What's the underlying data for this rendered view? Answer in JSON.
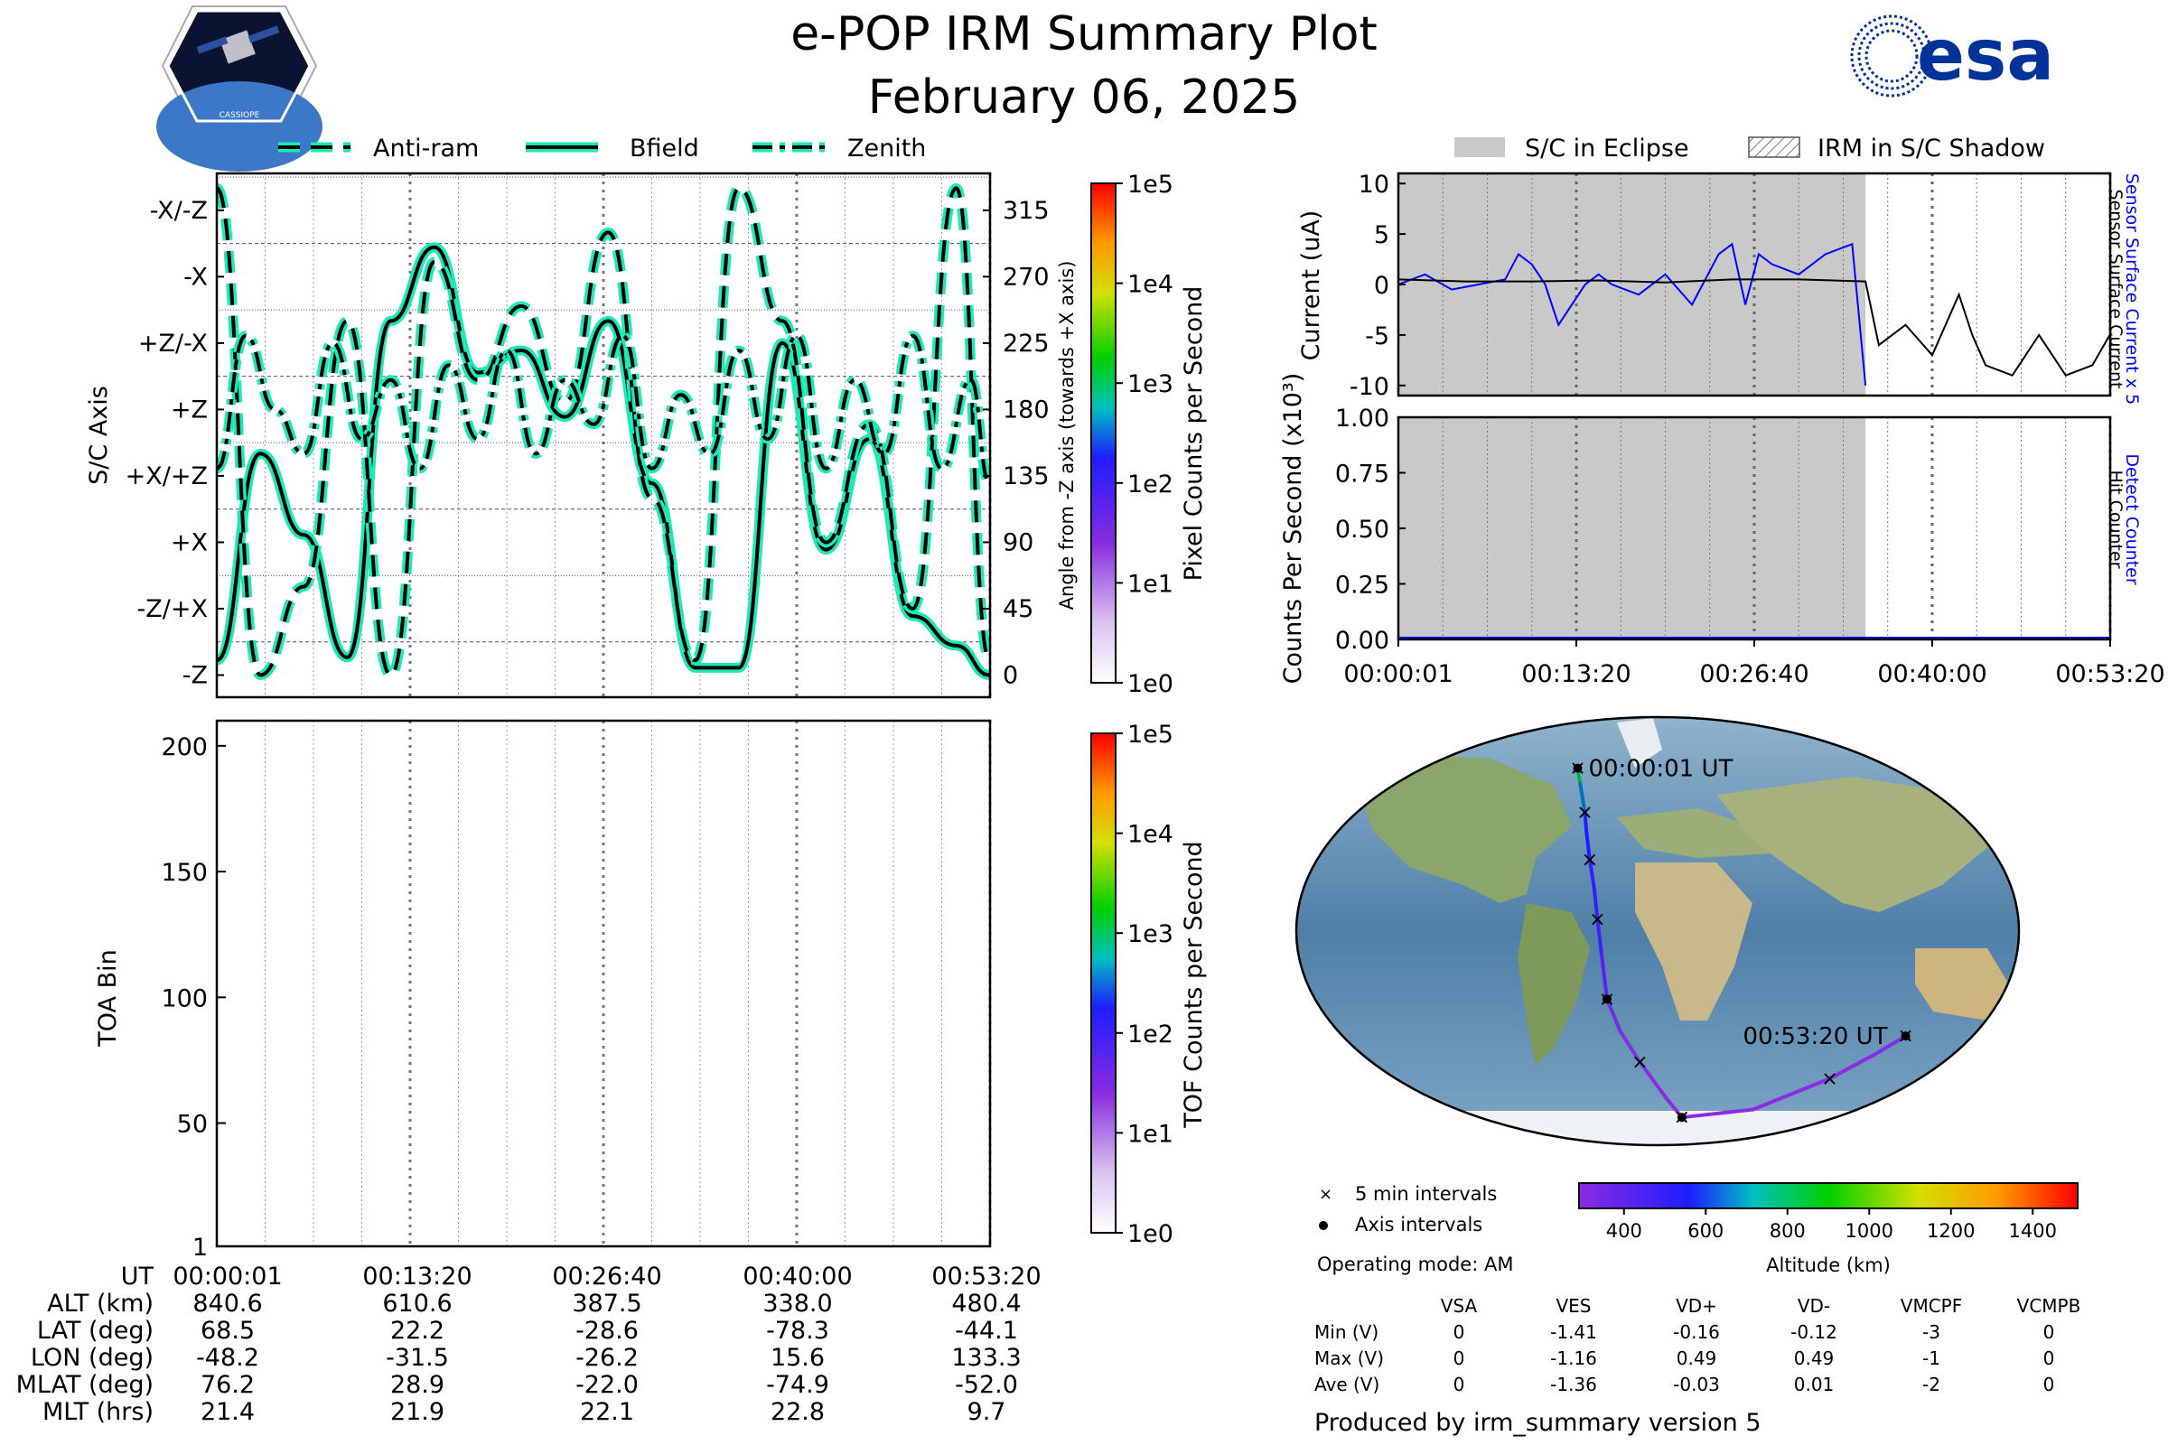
{
  "title": {
    "line1": "e-POP IRM Summary Plot",
    "line2": "February 06, 2025"
  },
  "logos": {
    "cassiope_text": "CASSIOPE",
    "esa_text": "esa"
  },
  "footer": "Produced by irm_summary version 5",
  "operating_mode": "Operating mode: AM",
  "colors": {
    "accent_line": "#1de9b6",
    "eclipse": "#c8c9c8",
    "current_blue": "#0000ff",
    "esa_navy": "#003399"
  },
  "chart_data": [
    {
      "id": "sc-axis",
      "type": "line",
      "legend": [
        "Anti-ram",
        "Bfield",
        "Zenith"
      ],
      "ylabel": "S/C Axis",
      "y2label": "Angle from -Z axis (towards +X axis)",
      "ytick_labels": [
        "-Z",
        "-Z/+X",
        "+X",
        "+X/+Z",
        "+Z",
        "+Z/-X",
        "-X",
        "-X/-Z"
      ],
      "y2ticks": [
        0,
        45,
        90,
        135,
        180,
        225,
        270,
        315
      ],
      "ylim": [
        -15,
        340
      ],
      "xlim": [
        "00:00:01",
        "00:53:20"
      ],
      "series": [
        {
          "name": "Bfield",
          "x_min": [
            0,
            3,
            6,
            9,
            12,
            15,
            18,
            21,
            24,
            27,
            30,
            33,
            36,
            39,
            42,
            45,
            48,
            51,
            53.3
          ],
          "values": [
            10,
            150,
            95,
            12,
            240,
            290,
            205,
            220,
            175,
            240,
            130,
            5,
            5,
            225,
            85,
            160,
            40,
            20,
            0
          ]
        },
        {
          "name": "Anti-ram",
          "x_min": [
            0,
            3,
            6,
            9,
            12,
            15,
            18,
            21,
            24,
            27,
            30,
            33,
            36,
            39,
            42,
            45,
            48,
            51,
            53.3
          ],
          "values": [
            330,
            0,
            60,
            240,
            0,
            280,
            200,
            250,
            185,
            300,
            120,
            10,
            330,
            240,
            90,
            170,
            45,
            330,
            10
          ]
        },
        {
          "name": "Zenith",
          "x_min": [
            0,
            2,
            4,
            6,
            8,
            10,
            12,
            14,
            16,
            18,
            20,
            22,
            24,
            26,
            28,
            30,
            32,
            34,
            36,
            38,
            40,
            42,
            44,
            46,
            48,
            50,
            52,
            53.3
          ],
          "values": [
            140,
            230,
            180,
            150,
            225,
            160,
            200,
            140,
            210,
            160,
            220,
            150,
            200,
            170,
            230,
            140,
            190,
            150,
            220,
            160,
            230,
            140,
            200,
            150,
            230,
            140,
            200,
            130
          ]
        }
      ]
    },
    {
      "id": "toa",
      "type": "heatmap",
      "ylabel": "TOA Bin",
      "yticks": [
        1,
        50,
        100,
        150,
        200
      ],
      "ylim": [
        1,
        210
      ],
      "colorbar": {
        "label": "TOF Counts per Second",
        "ticks": [
          "1e0",
          "1e1",
          "1e2",
          "1e3",
          "1e4",
          "1e5"
        ]
      },
      "values": []
    },
    {
      "id": "pixel-colorbar",
      "type": "heatmap",
      "colorbar": {
        "label": "Pixel Counts per Second",
        "ticks": [
          "1e0",
          "1e1",
          "1e2",
          "1e3",
          "1e4",
          "1e5"
        ]
      }
    },
    {
      "id": "current",
      "type": "line",
      "legend": [
        "S/C in Eclipse",
        "IRM in S/C Shadow"
      ],
      "ylabel": "Current (uA)",
      "right_labels": [
        "Sensor Surface Current x 5",
        "Sensor Surface Current"
      ],
      "yticks": [
        10,
        5,
        0,
        -5,
        -10
      ],
      "ylim": [
        -11,
        11
      ],
      "eclipse_range_min": [
        0,
        35.0
      ],
      "series": [
        {
          "name": "Sensor Surface Current x 5",
          "x_min": [
            0,
            2,
            4,
            6,
            8,
            9,
            10,
            11,
            12,
            13,
            14,
            15,
            16,
            18,
            20,
            22,
            24,
            25,
            26,
            27,
            28,
            30,
            32,
            34,
            35
          ],
          "values": [
            0,
            1,
            -0.5,
            0,
            0.5,
            3,
            2,
            0,
            -4,
            -2,
            0,
            1,
            0,
            -1,
            1,
            -2,
            3,
            4,
            -2,
            3,
            2,
            1,
            3,
            4,
            -10
          ]
        },
        {
          "name": "Sensor Surface Current",
          "x_min": [
            0,
            5,
            10,
            15,
            20,
            25,
            30,
            35,
            36,
            38,
            40,
            42,
            43,
            44,
            46,
            48,
            50,
            52,
            53.3
          ],
          "values": [
            0.5,
            0.3,
            0.3,
            0.4,
            0.2,
            0.5,
            0.5,
            0.3,
            -6,
            -4,
            -7,
            -1,
            -5,
            -8,
            -9,
            -5,
            -9,
            -8,
            -5
          ]
        }
      ]
    },
    {
      "id": "counts",
      "type": "line",
      "ylabel": "Counts Per Second (x10³)",
      "right_labels": [
        "Detect Counter",
        "Hit Counter"
      ],
      "yticks": [
        "1.00",
        "0.75",
        "0.50",
        "0.25",
        "0.00"
      ],
      "ylim": [
        0,
        1
      ],
      "xtick_labels": [
        "00:00:01",
        "00:13:20",
        "00:26:40",
        "00:40:00",
        "00:53:20"
      ],
      "series": [
        {
          "name": "Detect Counter",
          "x_min": [
            0,
            53.3
          ],
          "values": [
            0,
            0
          ]
        }
      ]
    },
    {
      "id": "orbit-map",
      "type": "scatter",
      "start_label": "00:00:01 UT",
      "end_label": "00:53:20 UT",
      "track_lon_lat": [
        [
          -48.2,
          68.5
        ],
        [
          -45,
          62
        ],
        [
          -40,
          50
        ],
        [
          -38,
          42
        ],
        [
          -35,
          30
        ],
        [
          -32,
          18
        ],
        [
          -30,
          5
        ],
        [
          -28,
          -10
        ],
        [
          -26,
          -28.6
        ],
        [
          -20,
          -42
        ],
        [
          -10,
          -55
        ],
        [
          5,
          -70
        ],
        [
          15.6,
          -78.3
        ],
        [
          60,
          -75
        ],
        [
          100,
          -62
        ],
        [
          120,
          -52
        ],
        [
          133.3,
          -44.1
        ]
      ],
      "legend": [
        "5 min intervals",
        "Axis intervals"
      ],
      "colorbar": {
        "label": "Altitude (km)",
        "ticks": [
          400,
          600,
          800,
          1000,
          1200,
          1400
        ]
      }
    },
    {
      "id": "ephemeris",
      "type": "table",
      "columns": [
        "UT",
        "00:00:01",
        "00:13:20",
        "00:26:40",
        "00:40:00",
        "00:53:20"
      ],
      "rows": [
        [
          "ALT (km)",
          "840.6",
          "610.6",
          "387.5",
          "338.0",
          "480.4"
        ],
        [
          "LAT (deg)",
          "68.5",
          "22.2",
          "-28.6",
          "-78.3",
          "-44.1"
        ],
        [
          "LON (deg)",
          "-48.2",
          "-31.5",
          "-26.2",
          "15.6",
          "133.3"
        ],
        [
          "MLAT (deg)",
          "76.2",
          "28.9",
          "-22.0",
          "-74.9",
          "-52.0"
        ],
        [
          "MLT (hrs)",
          "21.4",
          "21.9",
          "22.1",
          "22.8",
          "9.7"
        ]
      ]
    },
    {
      "id": "voltages",
      "type": "table",
      "columns": [
        "",
        "VSA",
        "VES",
        "VD+",
        "VD-",
        "VMCPF",
        "VCMPB"
      ],
      "rows": [
        [
          "Min (V)",
          "0",
          "-1.41",
          "-0.16",
          "-0.12",
          "-3",
          "0"
        ],
        [
          "Max (V)",
          "0",
          "-1.16",
          "0.49",
          "0.49",
          "-1",
          "0"
        ],
        [
          "Ave (V)",
          "0",
          "-1.36",
          "-0.03",
          "0.01",
          "-2",
          "0"
        ]
      ]
    }
  ]
}
